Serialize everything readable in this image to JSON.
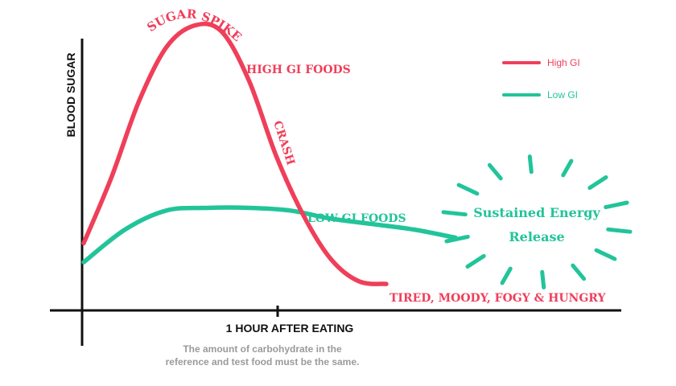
{
  "chart_data": {
    "type": "line",
    "xlabel": "1 HOUR AFTER EATING",
    "ylabel": "BLOOD SUGAR",
    "legend_position": "top-right",
    "grid": false,
    "series": [
      {
        "name": "High GI",
        "color": "#ef3f5a",
        "relative_level": [
          0.2,
          0.44,
          0.72,
          0.92,
          1.0,
          0.98,
          0.8,
          0.52,
          0.3,
          0.14,
          0.06,
          0.05
        ],
        "inline_label": "HIGH GI FOODS"
      },
      {
        "name": "Low GI",
        "color": "#22c49a",
        "relative_level": [
          0.13,
          0.25,
          0.32,
          0.33,
          0.33,
          0.32,
          0.29,
          0.27,
          0.25,
          0.22
        ],
        "inline_label": "LOW GI FOODS"
      }
    ],
    "x_tick_label": "1 HOUR AFTER EATING",
    "annotations": {
      "peak": "SUGAR SPIKE",
      "crash": "CRASH",
      "end": "TIRED, MOODY, FOGY & HUNGRY",
      "sustained_line1": "Sustained Energy",
      "sustained_line2": "Release"
    },
    "note_line1": "The amount of carbohydrate in the",
    "note_line2": "reference and test food must be the same."
  },
  "colors": {
    "high_gi": "#ef3f5a",
    "low_gi": "#22c49a",
    "axis": "#111111",
    "note": "#9a9a9a"
  }
}
